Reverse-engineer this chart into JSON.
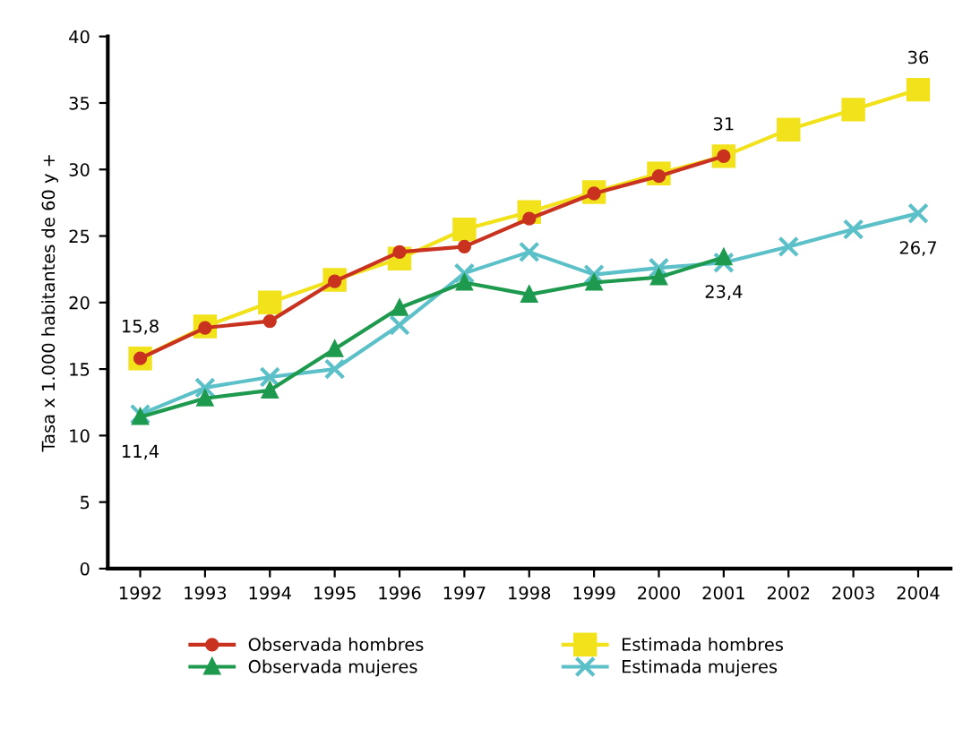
{
  "chart_data": {
    "type": "line",
    "ylabel": "Tasa x 1.000 habitantes de 60 y +",
    "categories": [
      "1992",
      "1993",
      "1994",
      "1995",
      "1996",
      "1997",
      "1998",
      "1999",
      "2000",
      "2001",
      "2002",
      "2003",
      "2004"
    ],
    "series": [
      {
        "name": "Observada hombres",
        "color": "#c8321e",
        "marker": "circle",
        "values": [
          15.8,
          18.1,
          18.6,
          21.6,
          23.8,
          24.2,
          26.3,
          28.2,
          29.5,
          31,
          null,
          null,
          null
        ]
      },
      {
        "name": "Observada mujeres",
        "color": "#1e9a4e",
        "marker": "triangle",
        "values": [
          11.4,
          12.8,
          13.4,
          16.5,
          19.6,
          21.5,
          20.6,
          21.5,
          21.9,
          23.4,
          null,
          null,
          null
        ]
      },
      {
        "name": "Estimada hombres",
        "color": "#f2e21b",
        "marker": "square",
        "values": [
          15.8,
          18.2,
          20.0,
          21.7,
          23.3,
          25.5,
          26.8,
          28.3,
          29.7,
          31,
          33,
          34.5,
          36
        ]
      },
      {
        "name": "Estimada mujeres",
        "color": "#5cc0c8",
        "marker": "cross",
        "values": [
          11.6,
          13.6,
          14.4,
          15.0,
          18.3,
          22.2,
          23.8,
          22.1,
          22.6,
          23.0,
          24.2,
          25.5,
          26.7
        ]
      }
    ],
    "ylim": [
      0,
      40
    ],
    "yticks": [
      0,
      5,
      10,
      15,
      20,
      25,
      30,
      35,
      40
    ],
    "grid": false,
    "legend": "bottom",
    "line_style": "solid",
    "annotations": [
      {
        "text": "15,8",
        "x": "1992",
        "y": 15.8
      },
      {
        "text": "11,4",
        "x": "1992",
        "y": 11.4
      },
      {
        "text": "31",
        "x": "2001",
        "y": 31
      },
      {
        "text": "23,4",
        "x": "2001",
        "y": 23.4
      },
      {
        "text": "36",
        "x": "2004",
        "y": 36
      },
      {
        "text": "26,7",
        "x": "2004",
        "y": 26.7
      }
    ]
  }
}
